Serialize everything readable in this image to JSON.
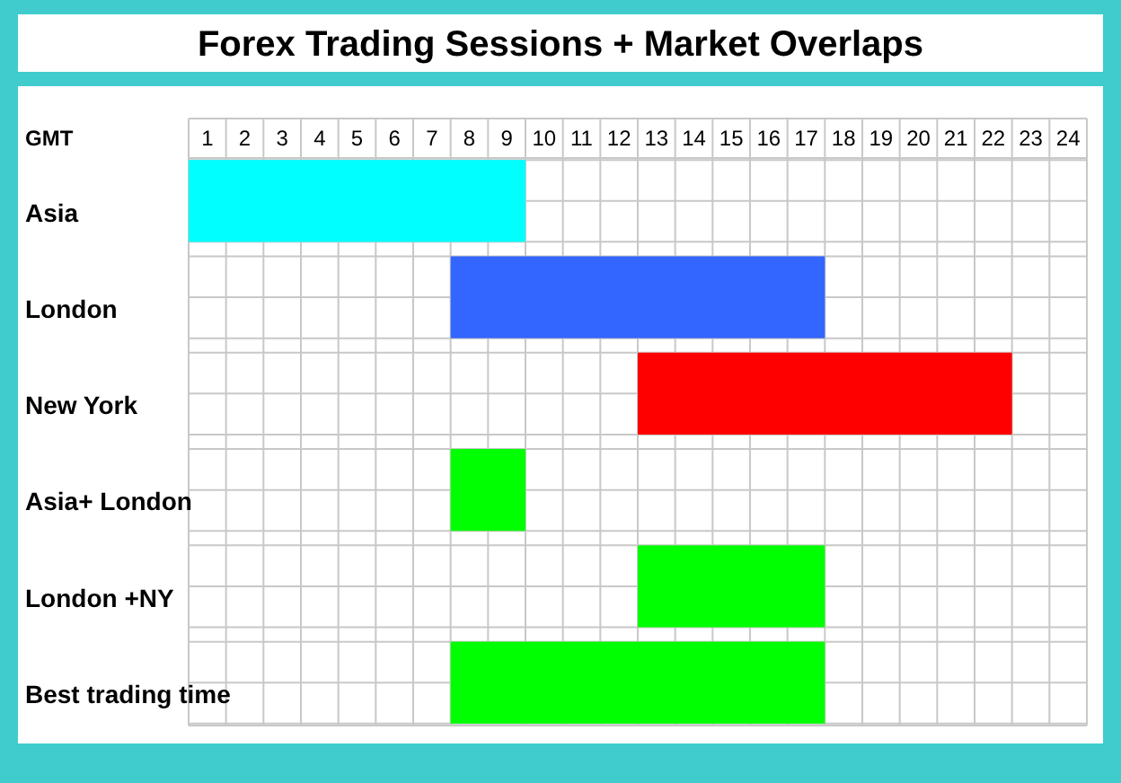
{
  "chart_data": {
    "type": "bar",
    "orientation": "horizontal",
    "title": "Forex Trading Sessions + Market Overlaps",
    "xlabel": "GMT",
    "categories": [
      "Asia",
      "London",
      "New York",
      "Asia+ London",
      "London +NY",
      "Best trading time"
    ],
    "base": [
      0,
      7,
      12,
      7,
      12,
      7
    ],
    "values": [
      9,
      10,
      10,
      2,
      5,
      10
    ],
    "colors": [
      "#00ffff",
      "#3366ff",
      "#ff0000",
      "#00ff00",
      "#00ff00",
      "#00ff00"
    ],
    "xlim": [
      0,
      24
    ],
    "xticks": [
      {
        "value": 0.5,
        "label": "1"
      },
      {
        "value": 1.5,
        "label": "2"
      },
      {
        "value": 2.5,
        "label": "3"
      },
      {
        "value": 3.5,
        "label": "4"
      },
      {
        "value": 4.5,
        "label": "5"
      },
      {
        "value": 5.5,
        "label": "6"
      },
      {
        "value": 6.5,
        "label": "7"
      },
      {
        "value": 7.5,
        "label": "8"
      },
      {
        "value": 8.5,
        "label": "9"
      },
      {
        "value": 9.5,
        "label": "10"
      },
      {
        "value": 10.5,
        "label": "11"
      },
      {
        "value": 11.5,
        "label": "12"
      },
      {
        "value": 12.5,
        "label": "13"
      },
      {
        "value": 13.5,
        "label": "14"
      },
      {
        "value": 14.5,
        "label": "15"
      },
      {
        "value": 15.5,
        "label": "16"
      },
      {
        "value": 16.5,
        "label": "17"
      },
      {
        "value": 17.5,
        "label": "18"
      },
      {
        "value": 18.5,
        "label": "19"
      },
      {
        "value": 19.5,
        "label": "20"
      },
      {
        "value": 20.5,
        "label": "21"
      },
      {
        "value": 21.5,
        "label": "22"
      },
      {
        "value": 22.5,
        "label": "23"
      },
      {
        "value": 23.5,
        "label": "24"
      }
    ],
    "grid": true
  }
}
